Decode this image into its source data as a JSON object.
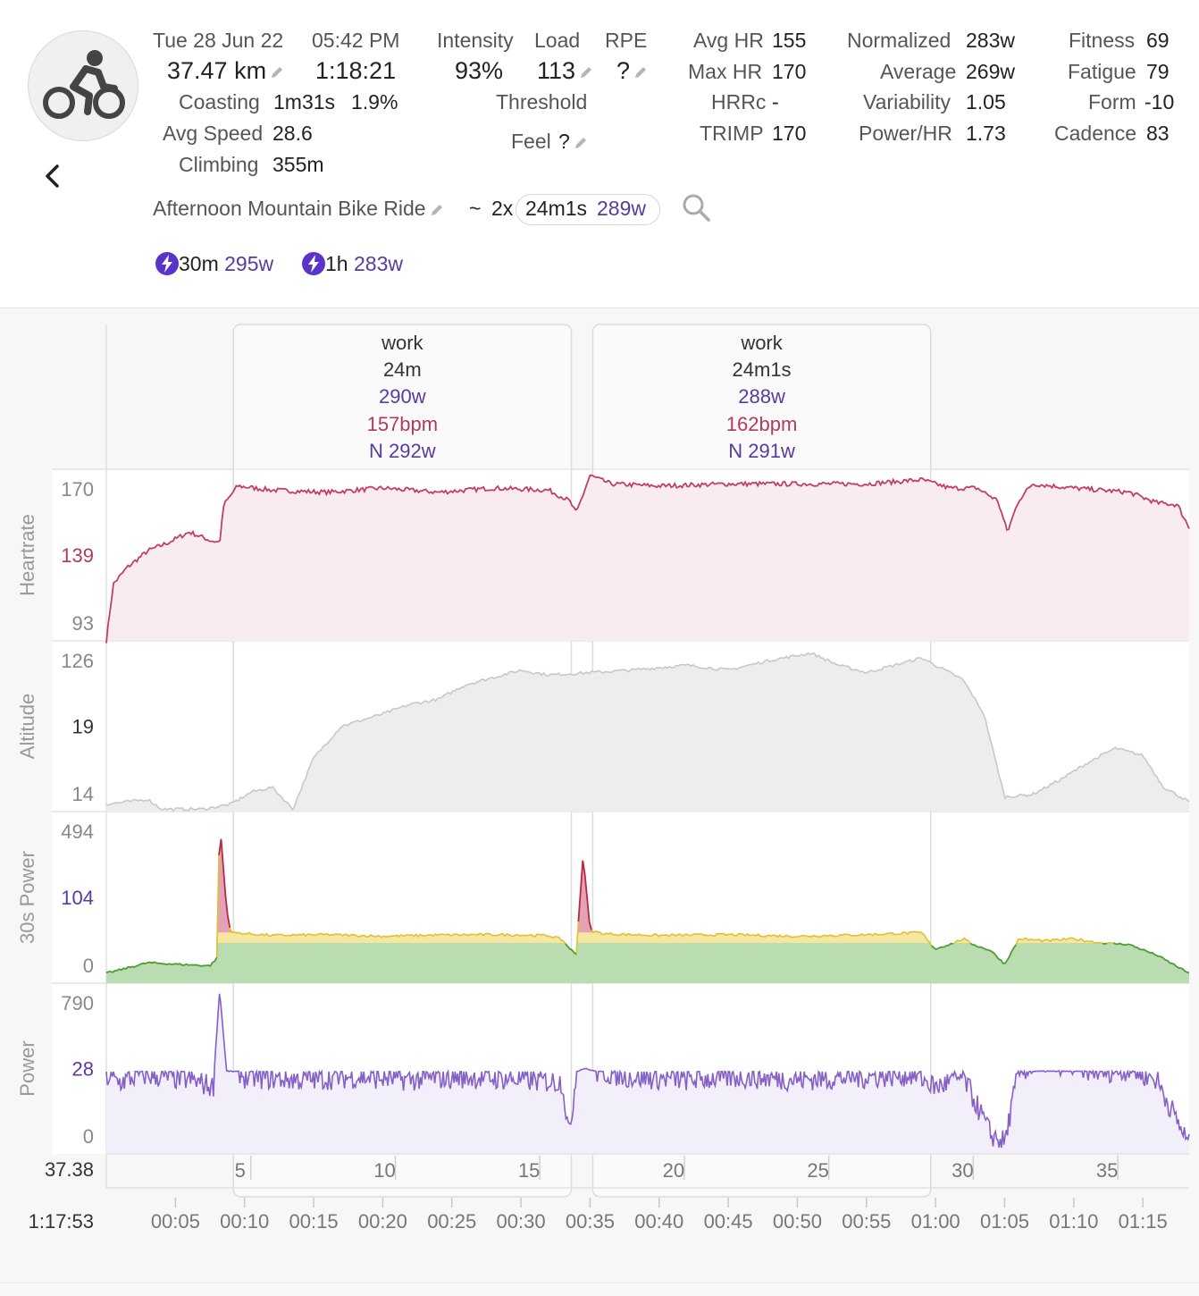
{
  "activity": {
    "date": "Tue 28 Jun 22",
    "time": "05:42 PM",
    "distance": "37.47 km",
    "duration": "1:18:21",
    "coasting_label": "Coasting",
    "coasting_time": "1m31s",
    "coasting_pct": "1.9%",
    "avg_speed_label": "Avg Speed",
    "avg_speed": "28.6",
    "climbing_label": "Climbing",
    "climbing": "355m",
    "name": "Afternoon Mountain Bike Ride",
    "interval_sep": "~",
    "interval_count": "2x",
    "interval_duration": "24m1s",
    "interval_power": "289w"
  },
  "load": {
    "intensity_label": "Intensity",
    "load_label": "Load",
    "rpe_label": "RPE",
    "intensity": "93%",
    "load": "113",
    "rpe": "?",
    "threshold_label": "Threshold",
    "feel_label": "Feel",
    "feel": "?"
  },
  "hr": {
    "avg_label": "Avg HR",
    "avg": "155",
    "max_label": "Max HR",
    "max": "170",
    "hrrc_label": "HRRc",
    "hrrc": "-",
    "trimp_label": "TRIMP",
    "trimp": "170"
  },
  "power": {
    "normalized_label": "Normalized",
    "normalized": "283w",
    "average_label": "Average",
    "average": "269w",
    "variability_label": "Variability",
    "variability": "1.05",
    "power_hr_label": "Power/HR",
    "power_hr": "1.73"
  },
  "fitness": {
    "fitness_label": "Fitness",
    "fitness": "69",
    "fatigue_label": "Fatigue",
    "fatigue": "79",
    "form_label": "Form",
    "form": "-10",
    "cadence_label": "Cadence",
    "cadence": "83"
  },
  "peaks": [
    {
      "duration": "30m",
      "power": "295w"
    },
    {
      "duration": "1h",
      "power": "283w"
    }
  ],
  "intervals": [
    {
      "label": "work",
      "duration": "24m",
      "power": "290w",
      "hr": "157bpm",
      "np": "N 292w"
    },
    {
      "label": "work",
      "duration": "24m1s",
      "power": "288w",
      "hr": "162bpm",
      "np": "N 291w"
    }
  ],
  "colors": {
    "heartrate": "#c2405f",
    "power": "#8560c8",
    "zone_green": "#4f9e3b",
    "zone_yellow": "#e0c030",
    "zone_red": "#b8284a",
    "altitude": "#c8c8c8"
  },
  "panels": [
    {
      "label": "Heartrate",
      "ticks": [
        "170",
        "139",
        "93"
      ]
    },
    {
      "label": "Altitude",
      "ticks": [
        "126",
        "19",
        "14"
      ]
    },
    {
      "label": "30s Power",
      "ticks": [
        "494",
        "104",
        "0"
      ]
    },
    {
      "label": "Power",
      "ticks": [
        "790",
        "28",
        "0"
      ]
    }
  ],
  "axes": {
    "distance_readout": "37.38",
    "distance_ticks": [
      5,
      10,
      15,
      20,
      25,
      30,
      35
    ],
    "time_readout": "1:17:53",
    "time_ticks": [
      "00:05",
      "00:10",
      "00:15",
      "00:20",
      "00:25",
      "00:30",
      "00:35",
      "00:40",
      "00:45",
      "00:50",
      "00:55",
      "01:00",
      "01:05",
      "01:10",
      "01:15"
    ]
  },
  "chart_data": {
    "type": "area",
    "x_unit": "minutes",
    "duration_min": 78.35,
    "intervals_min": [
      [
        9,
        33
      ],
      [
        35,
        59
      ]
    ],
    "heartrate_bpm": [
      [
        0,
        93
      ],
      [
        0.5,
        120
      ],
      [
        1.5,
        128
      ],
      [
        3,
        136
      ],
      [
        4.5,
        140
      ],
      [
        6,
        145
      ],
      [
        7.5,
        141
      ],
      [
        8.2,
        140
      ],
      [
        8.5,
        158
      ],
      [
        9.5,
        167
      ],
      [
        12,
        165
      ],
      [
        16,
        164
      ],
      [
        20,
        166
      ],
      [
        24,
        164
      ],
      [
        28,
        166
      ],
      [
        32,
        165
      ],
      [
        33.5,
        160
      ],
      [
        34,
        154
      ],
      [
        35,
        172
      ],
      [
        36.5,
        168
      ],
      [
        40,
        167
      ],
      [
        45,
        168
      ],
      [
        50,
        168
      ],
      [
        55,
        168
      ],
      [
        59,
        170
      ],
      [
        61,
        166
      ],
      [
        63,
        166
      ],
      [
        64.5,
        160
      ],
      [
        65.2,
        145
      ],
      [
        66,
        160
      ],
      [
        67,
        168
      ],
      [
        70,
        166
      ],
      [
        74,
        164
      ],
      [
        76,
        159
      ],
      [
        77.5,
        158
      ],
      [
        78.35,
        147
      ]
    ],
    "altitude": [
      [
        0,
        14.3
      ],
      [
        3,
        14.5
      ],
      [
        4,
        14.1
      ],
      [
        7,
        14.1
      ],
      [
        9,
        14.3
      ],
      [
        10.5,
        14.8
      ],
      [
        12,
        15.0
      ],
      [
        13.5,
        14.1
      ],
      [
        15,
        16.2
      ],
      [
        17,
        17.5
      ],
      [
        20,
        18.0
      ],
      [
        22,
        18.4
      ],
      [
        24,
        18.6
      ],
      [
        26,
        19.2
      ],
      [
        28,
        19.5
      ],
      [
        30,
        19.8
      ],
      [
        32,
        19.6
      ],
      [
        35,
        19.7
      ],
      [
        38,
        19.8
      ],
      [
        42,
        20.0
      ],
      [
        45,
        19.8
      ],
      [
        48,
        20.2
      ],
      [
        51,
        20.5
      ],
      [
        53,
        20.0
      ],
      [
        55,
        19.7
      ],
      [
        59,
        20.3
      ],
      [
        62,
        19.4
      ],
      [
        63.5,
        18.0
      ],
      [
        65,
        14.6
      ],
      [
        67,
        14.7
      ],
      [
        69,
        15.3
      ],
      [
        71,
        16.0
      ],
      [
        73,
        16.6
      ],
      [
        75,
        16.3
      ],
      [
        76.5,
        15.0
      ],
      [
        78.35,
        14.4
      ]
    ],
    "power_30s_w": [
      [
        0,
        0
      ],
      [
        3,
        35
      ],
      [
        5,
        30
      ],
      [
        7.5,
        25
      ],
      [
        8,
        50
      ],
      [
        8.2,
        494
      ],
      [
        8.7,
        200
      ],
      [
        9,
        125
      ],
      [
        12,
        118
      ],
      [
        16,
        120
      ],
      [
        20,
        116
      ],
      [
        24,
        119
      ],
      [
        28,
        120
      ],
      [
        32,
        118
      ],
      [
        33,
        108
      ],
      [
        34,
        60
      ],
      [
        34.5,
        380
      ],
      [
        35,
        130
      ],
      [
        36,
        122
      ],
      [
        40,
        118
      ],
      [
        45,
        120
      ],
      [
        50,
        116
      ],
      [
        55,
        120
      ],
      [
        59,
        125
      ],
      [
        60,
        80
      ],
      [
        62,
        110
      ],
      [
        63,
        90
      ],
      [
        64,
        75
      ],
      [
        65,
        30
      ],
      [
        66,
        110
      ],
      [
        68,
        105
      ],
      [
        70,
        110
      ],
      [
        72,
        100
      ],
      [
        74,
        95
      ],
      [
        76,
        60
      ],
      [
        78.35,
        0
      ]
    ],
    "power_w": [
      [
        0,
        28
      ],
      [
        1,
        26
      ],
      [
        2.5,
        29
      ],
      [
        4,
        28
      ],
      [
        6,
        27
      ],
      [
        7.8,
        24
      ],
      [
        8.2,
        790
      ],
      [
        8.7,
        35
      ],
      [
        10,
        28
      ],
      [
        14,
        27
      ],
      [
        18,
        28
      ],
      [
        22,
        27
      ],
      [
        26,
        28
      ],
      [
        30,
        27
      ],
      [
        33,
        26
      ],
      [
        33.5,
        5
      ],
      [
        34.6,
        60
      ],
      [
        35.5,
        30
      ],
      [
        38,
        28
      ],
      [
        42,
        27
      ],
      [
        46,
        28
      ],
      [
        50,
        27
      ],
      [
        55,
        28
      ],
      [
        58.5,
        29
      ],
      [
        60,
        24
      ],
      [
        62,
        28
      ],
      [
        64,
        6
      ],
      [
        65,
        3
      ],
      [
        66,
        30
      ],
      [
        68,
        34
      ],
      [
        70,
        32
      ],
      [
        72,
        30
      ],
      [
        74,
        31
      ],
      [
        76,
        27
      ],
      [
        78.35,
        2
      ]
    ]
  }
}
